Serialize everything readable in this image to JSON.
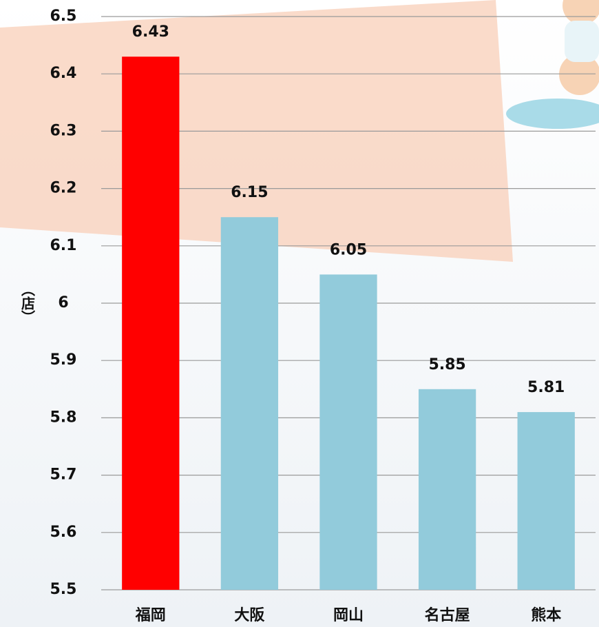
{
  "chart_data": {
    "type": "bar",
    "y_label": "（店）",
    "categories": [
      "福岡",
      "大阪",
      "岡山",
      "名古屋",
      "熊本"
    ],
    "values": [
      6.43,
      6.15,
      6.05,
      5.85,
      5.81
    ],
    "colors": [
      "#ff0000",
      "#92cbdb",
      "#92cbdb",
      "#92cbdb",
      "#92cbdb"
    ],
    "ylim": [
      5.5,
      6.5
    ],
    "yticks": [
      5.5,
      5.6,
      5.7,
      5.8,
      5.9,
      6,
      6.1,
      6.2,
      6.3,
      6.4,
      6.5
    ],
    "grid": true
  }
}
